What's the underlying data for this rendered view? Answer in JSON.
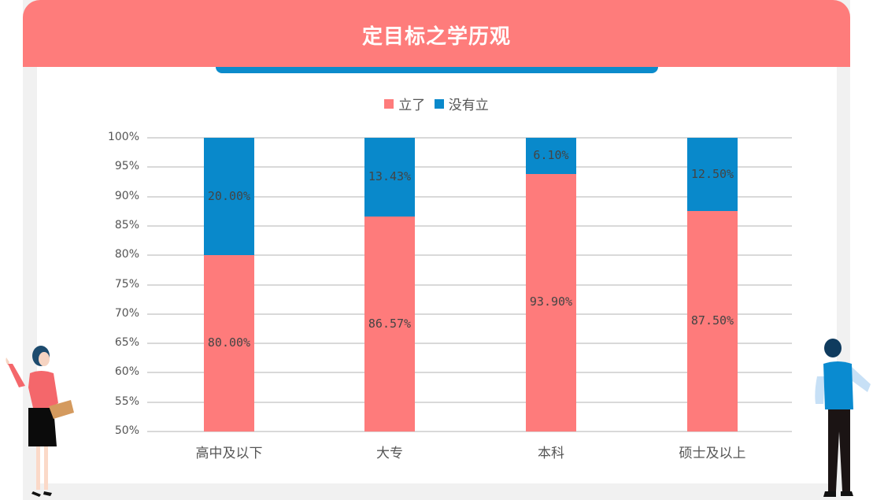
{
  "header": {
    "title": "定目标之学历观"
  },
  "colors": {
    "header": "#fe7c7b",
    "accent": "#0c8bcb",
    "series_set": "#fe7b7b",
    "series_unset": "#0989cb"
  },
  "legend": [
    {
      "label": "立了",
      "color": "#fe7b7b"
    },
    {
      "label": "没有立",
      "color": "#0989cb"
    }
  ],
  "yaxis": {
    "ticks": [
      "100%",
      "95%",
      "90%",
      "85%",
      "80%",
      "75%",
      "70%",
      "65%",
      "60%",
      "55%",
      "50%"
    ]
  },
  "categories": [
    {
      "label": "高中及以下",
      "set": 80.0,
      "unset": 20.0,
      "set_label": "80.00%",
      "unset_label": "20.00%"
    },
    {
      "label": "大专",
      "set": 86.57,
      "unset": 13.43,
      "set_label": "86.57%",
      "unset_label": "13.43%"
    },
    {
      "label": "本科",
      "set": 93.9,
      "unset": 6.1,
      "set_label": "93.90%",
      "unset_label": "6.10%"
    },
    {
      "label": "硕士及以上",
      "set": 87.5,
      "unset": 12.5,
      "set_label": "87.50%",
      "unset_label": "12.50%"
    }
  ],
  "chart_data": {
    "type": "bar",
    "stacked": true,
    "title": "定目标之学历观",
    "categories": [
      "高中及以下",
      "大专",
      "本科",
      "硕士及以上"
    ],
    "series": [
      {
        "name": "立了",
        "values": [
          80.0,
          86.57,
          93.9,
          87.5
        ]
      },
      {
        "name": "没有立",
        "values": [
          20.0,
          13.43,
          6.1,
          12.5
        ]
      }
    ],
    "xlabel": "",
    "ylabel": "",
    "ylim": [
      50,
      100
    ],
    "yticks_unit": "%",
    "grid": true,
    "legend_position": "top"
  }
}
